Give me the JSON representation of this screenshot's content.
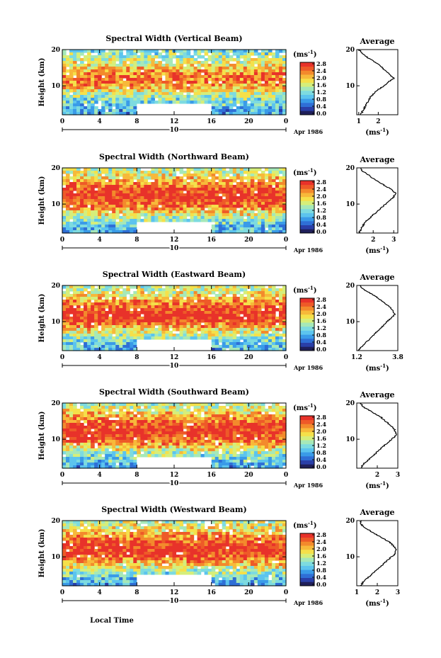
{
  "figure": {
    "xlabel": "Local Time",
    "date_label": "Apr 1986",
    "day_label": "10",
    "colorbar_unit": "(ms",
    "colorbar_unit_exp": "-1",
    "colorbar_ticks": [
      "0.0",
      "0.4",
      "0.8",
      "1.2",
      "1.6",
      "2.0",
      "2.4",
      "2.8"
    ],
    "palette": [
      "#1f1f5a",
      "#2a3fa8",
      "#2f6fd6",
      "#3a9be8",
      "#5cc4ee",
      "#7ddbe0",
      "#a6e8b8",
      "#d6ee7a",
      "#f5e04a",
      "#f7b93a",
      "#f38a2c",
      "#ee5a28",
      "#e8322a"
    ],
    "gap_color": "#ffffff"
  },
  "chart_data": [
    {
      "type": "heatmap",
      "title": "Spectral Width (Vertical Beam)",
      "ylabel": "Height (km)",
      "x_ticks": [
        "0",
        "4",
        "8",
        "12",
        "16",
        "20",
        "0"
      ],
      "y_ticks": [
        "20",
        "10"
      ],
      "xlim": [
        0,
        24
      ],
      "ylim": [
        2,
        20
      ],
      "zlim": [
        0.0,
        2.8
      ],
      "data_gap": {
        "x": [
          8,
          16
        ],
        "y": [
          2,
          5
        ]
      },
      "level_profile": {
        "height_km": [
          2,
          4,
          6,
          8,
          10,
          12,
          14,
          16,
          18,
          20
        ],
        "spectral_width_ms": [
          0.8,
          0.9,
          1.2,
          1.6,
          2.2,
          2.5,
          2.2,
          1.8,
          1.4,
          1.2
        ]
      },
      "average": {
        "title": "Average",
        "xlabel": "(ms",
        "xlabel_exp": "-1",
        "x_ticks": [
          "1",
          "2"
        ],
        "xlim": [
          0.9,
          3.0
        ],
        "height_km": [
          2,
          3,
          4,
          5,
          6,
          7,
          8,
          9,
          10,
          11,
          12,
          13,
          14,
          15,
          16,
          17,
          18,
          19,
          20
        ],
        "spectral_width_ms": [
          1.1,
          1.2,
          1.3,
          1.4,
          1.5,
          1.6,
          1.8,
          2.0,
          2.3,
          2.5,
          2.8,
          2.6,
          2.4,
          2.2,
          2.0,
          1.7,
          1.4,
          1.2,
          1.0
        ]
      }
    },
    {
      "type": "heatmap",
      "title": "Spectral Width (Northward Beam)",
      "ylabel": "Height (km)",
      "x_ticks": [
        "0",
        "4",
        "8",
        "12",
        "16",
        "20",
        "0"
      ],
      "y_ticks": [
        "20",
        "10"
      ],
      "xlim": [
        0,
        24
      ],
      "ylim": [
        2,
        20
      ],
      "zlim": [
        0.0,
        2.8
      ],
      "data_gap": {
        "x": [
          8,
          16
        ],
        "y": [
          2,
          5
        ]
      },
      "level_profile": {
        "height_km": [
          2,
          4,
          6,
          8,
          10,
          12,
          14,
          16,
          18,
          20
        ],
        "spectral_width_ms": [
          0.8,
          1.0,
          1.4,
          2.0,
          2.6,
          2.9,
          2.7,
          2.2,
          1.8,
          1.5
        ]
      },
      "average": {
        "title": "Average",
        "xlabel": "(ms",
        "xlabel_exp": "-1",
        "x_ticks": [
          "2",
          "3"
        ],
        "xlim": [
          1.2,
          3.2
        ],
        "height_km": [
          2,
          3,
          4,
          5,
          6,
          7,
          8,
          9,
          10,
          11,
          12,
          13,
          14,
          15,
          16,
          17,
          18,
          19,
          20
        ],
        "spectral_width_ms": [
          1.3,
          1.4,
          1.5,
          1.6,
          1.8,
          2.0,
          2.2,
          2.4,
          2.6,
          2.8,
          3.0,
          3.1,
          2.9,
          2.6,
          2.3,
          2.0,
          1.8,
          1.5,
          1.4
        ]
      }
    },
    {
      "type": "heatmap",
      "title": "Spectral Width (Eastward Beam)",
      "ylabel": "Height (km)",
      "x_ticks": [
        "0",
        "4",
        "8",
        "12",
        "16",
        "20",
        "0"
      ],
      "y_ticks": [
        "20",
        "10"
      ],
      "xlim": [
        0,
        24
      ],
      "ylim": [
        2,
        20
      ],
      "zlim": [
        0.0,
        2.8
      ],
      "data_gap": {
        "x": [
          8,
          16
        ],
        "y": [
          2,
          5
        ]
      },
      "level_profile": {
        "height_km": [
          2,
          4,
          6,
          8,
          10,
          12,
          14,
          16,
          18,
          20
        ],
        "spectral_width_ms": [
          0.8,
          1.0,
          1.4,
          2.0,
          2.6,
          2.9,
          2.6,
          2.2,
          1.8,
          1.5
        ]
      },
      "average": {
        "title": "Average",
        "xlabel": "(ms",
        "xlabel_exp": "-1",
        "x_ticks": [
          "1.2",
          "3.8"
        ],
        "xlim": [
          1.2,
          3.8
        ],
        "height_km": [
          2,
          3,
          4,
          5,
          6,
          7,
          8,
          9,
          10,
          11,
          12,
          13,
          14,
          15,
          16,
          17,
          18,
          19,
          20
        ],
        "spectral_width_ms": [
          1.3,
          1.5,
          1.7,
          2.0,
          2.2,
          2.4,
          2.7,
          2.9,
          3.1,
          3.4,
          3.6,
          3.5,
          3.3,
          3.0,
          2.7,
          2.4,
          2.0,
          1.6,
          1.4
        ]
      }
    },
    {
      "type": "heatmap",
      "title": "Spectral Width (Southward Beam)",
      "ylabel": "Height (km)",
      "x_ticks": [
        "0",
        "4",
        "8",
        "12",
        "16",
        "20",
        "0"
      ],
      "y_ticks": [
        "20",
        "10"
      ],
      "xlim": [
        0,
        24
      ],
      "ylim": [
        2,
        20
      ],
      "zlim": [
        0.0,
        2.8
      ],
      "data_gap": {
        "x": [
          8,
          16
        ],
        "y": [
          2,
          5
        ]
      },
      "level_profile": {
        "height_km": [
          2,
          4,
          6,
          8,
          10,
          12,
          14,
          16,
          18,
          20
        ],
        "spectral_width_ms": [
          0.8,
          1.0,
          1.4,
          2.0,
          2.6,
          2.9,
          2.7,
          2.2,
          1.8,
          1.5
        ]
      },
      "average": {
        "title": "Average",
        "xlabel": "(ms",
        "xlabel_exp": "-1",
        "x_ticks": [
          "2",
          "3"
        ],
        "xlim": [
          1.0,
          3.0
        ],
        "height_km": [
          2,
          3,
          4,
          5,
          6,
          7,
          8,
          9,
          10,
          11,
          12,
          13,
          14,
          15,
          16,
          17,
          18,
          19,
          20
        ],
        "spectral_width_ms": [
          1.2,
          1.3,
          1.5,
          1.7,
          1.9,
          2.1,
          2.3,
          2.5,
          2.7,
          2.9,
          2.9,
          2.8,
          2.6,
          2.4,
          2.2,
          1.9,
          1.6,
          1.3,
          1.2
        ]
      }
    },
    {
      "type": "heatmap",
      "title": "Spectral Width (Westward Beam)",
      "ylabel": "Height (km)",
      "x_ticks": [
        "0",
        "4",
        "8",
        "12",
        "16",
        "20",
        "0"
      ],
      "y_ticks": [
        "20",
        "10"
      ],
      "xlim": [
        0,
        24
      ],
      "ylim": [
        2,
        20
      ],
      "zlim": [
        0.0,
        2.8
      ],
      "data_gap": {
        "x": [
          8,
          16
        ],
        "y": [
          2,
          5
        ]
      },
      "level_profile": {
        "height_km": [
          2,
          4,
          6,
          8,
          10,
          12,
          14,
          16,
          18,
          20
        ],
        "spectral_width_ms": [
          0.8,
          1.0,
          1.4,
          2.0,
          2.6,
          2.9,
          2.7,
          2.2,
          1.8,
          1.5
        ]
      },
      "average": {
        "title": "Average",
        "xlabel": "(ms",
        "xlabel_exp": "-1",
        "x_ticks": [
          "1",
          "2",
          "3"
        ],
        "xlim": [
          1.0,
          3.0
        ],
        "height_km": [
          2,
          3,
          4,
          5,
          6,
          7,
          8,
          9,
          10,
          11,
          12,
          13,
          14,
          15,
          16,
          17,
          18,
          19,
          20
        ],
        "spectral_width_ms": [
          1.2,
          1.3,
          1.5,
          1.7,
          1.9,
          2.1,
          2.3,
          2.5,
          2.7,
          2.9,
          2.9,
          2.8,
          2.6,
          2.3,
          2.0,
          1.7,
          1.4,
          1.2,
          1.2
        ]
      }
    }
  ]
}
